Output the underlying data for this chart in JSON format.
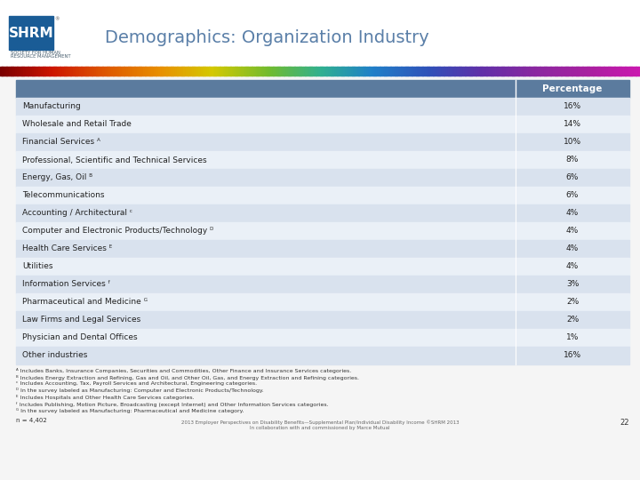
{
  "title": "Demographics: Organization Industry",
  "header_label": "Percentage",
  "rows": [
    {
      "label": "Manufacturing",
      "value": "16%"
    },
    {
      "label": "Wholesale and Retail Trade",
      "value": "14%"
    },
    {
      "label": "Financial Services ᴬ",
      "value": "10%"
    },
    {
      "label": "Professional, Scientific and Technical Services",
      "value": "8%"
    },
    {
      "label": "Energy, Gas, Oil ᴮ",
      "value": "6%"
    },
    {
      "label": "Telecommunications",
      "value": "6%"
    },
    {
      "label": "Accounting / Architectural ᶜ",
      "value": "4%"
    },
    {
      "label": "Computer and Electronic Products/Technology ᴰ",
      "value": "4%"
    },
    {
      "label": "Health Care Services ᴱ",
      "value": "4%"
    },
    {
      "label": "Utilities",
      "value": "4%"
    },
    {
      "label": "Information Services ᶠ",
      "value": "3%"
    },
    {
      "label": "Pharmaceutical and Medicine ᴳ",
      "value": "2%"
    },
    {
      "label": "Law Firms and Legal Services",
      "value": "2%"
    },
    {
      "label": "Physician and Dental Offices",
      "value": "1%"
    },
    {
      "label": "Other industries",
      "value": "16%"
    }
  ],
  "footnotes": [
    "ᴬ Includes Banks, Insurance Companies, Securities and Commodities, Other Finance and Insurance Services categories.",
    "ᴮ Includes Energy Extraction and Refining, Gas and Oil, and Other Oil, Gas, and Energy Extraction and Refining categories.",
    "ᶜ Includes Accounting, Tax, Payroll Services and Architectural, Engineering categories.",
    "ᴰ In the survey labeled as Manufacturing: Computer and Electronic Products/Technology.",
    "ᴱ Includes Hospitals and Other Health Care Services categories.",
    "ᶠ Includes Publishing, Motion Picture, Broadcasting (except Internet) and Other Information Services categories.",
    "ᴳ In the survey labeled as Manufacturing: Pharmaceutical and Medicine category."
  ],
  "n_note": "n = 4,402",
  "bottom_center": "2013 Employer Perspectives on Disability Benefits—Supplemental Plan/Individual Disability Income ©SHRM 2013",
  "bottom_center2": "In collaboration with and commissioned by Marce Mutual",
  "page_num": "22",
  "header_bg": "#5b7b9e",
  "odd_row_bg": "#d9e2ee",
  "even_row_bg": "#eaf0f7",
  "header_text_color": "#ffffff",
  "row_text_color": "#222222",
  "title_color": "#5a7fa8",
  "bg_color": "#f5f5f5",
  "ribbon_colors": [
    [
      0.0,
      "#7a0000"
    ],
    [
      0.08,
      "#cc1500"
    ],
    [
      0.16,
      "#dd5500"
    ],
    [
      0.25,
      "#e89000"
    ],
    [
      0.33,
      "#d4c800"
    ],
    [
      0.42,
      "#70bb30"
    ],
    [
      0.5,
      "#30b090"
    ],
    [
      0.58,
      "#2080c8"
    ],
    [
      0.67,
      "#3050b8"
    ],
    [
      0.75,
      "#6030a8"
    ],
    [
      0.83,
      "#8828a0"
    ],
    [
      0.92,
      "#aa20a0"
    ],
    [
      1.0,
      "#cc18b0"
    ]
  ]
}
